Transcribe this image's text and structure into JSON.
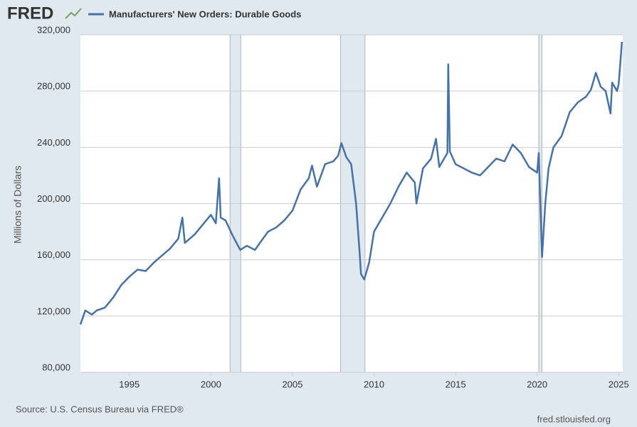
{
  "chart_data": {
    "type": "line",
    "logo": "FRED",
    "y_label": "Millions of Dollars",
    "source": "Source: U.S. Census Bureau via FRED®",
    "site": "fred.stlouisfed.org",
    "x": [
      1992.0,
      1992.3,
      1992.7,
      1993.0,
      1993.5,
      1994.0,
      1994.5,
      1995.0,
      1995.5,
      1996.0,
      1996.5,
      1997.0,
      1997.5,
      1998.0,
      1998.25,
      1998.4,
      1999.0,
      1999.5,
      2000.0,
      2000.3,
      2000.5,
      2000.6,
      2000.9,
      2001.3,
      2001.8,
      2002.2,
      2002.7,
      2003.0,
      2003.5,
      2004.0,
      2004.5,
      2005.0,
      2005.5,
      2006.0,
      2006.2,
      2006.5,
      2007.0,
      2007.5,
      2007.8,
      2008.0,
      2008.3,
      2008.6,
      2008.9,
      2009.1,
      2009.2,
      2009.4,
      2009.7,
      2010.0,
      2010.5,
      2011.0,
      2011.5,
      2012.0,
      2012.5,
      2012.6,
      2013.0,
      2013.5,
      2013.8,
      2014.0,
      2014.5,
      2014.55,
      2014.65,
      2015.0,
      2015.5,
      2016.0,
      2016.5,
      2017.0,
      2017.5,
      2018.0,
      2018.5,
      2019.0,
      2019.5,
      2020.0,
      2020.1,
      2020.3,
      2020.5,
      2020.7,
      2021.0,
      2021.5,
      2022.0,
      2022.5,
      2023.0,
      2023.3,
      2023.6,
      2023.9,
      2024.2,
      2024.5,
      2024.6,
      2024.9,
      2025.0,
      2025.2
    ],
    "series": [
      {
        "name": "Manufacturers' New Orders: Durable Goods",
        "color": "#4572a7",
        "values": [
          114000,
          124000,
          121000,
          124000,
          126000,
          133000,
          142000,
          148000,
          153000,
          152000,
          158000,
          163000,
          168000,
          175000,
          190000,
          172000,
          178000,
          185000,
          192000,
          186000,
          218000,
          190000,
          188000,
          178000,
          167000,
          170000,
          167000,
          172000,
          180000,
          183000,
          188000,
          195000,
          210000,
          218000,
          227000,
          212000,
          228000,
          230000,
          234000,
          243000,
          233000,
          228000,
          200000,
          168000,
          150000,
          146000,
          158000,
          180000,
          190000,
          200000,
          212000,
          222000,
          215000,
          200000,
          225000,
          232000,
          246000,
          226000,
          236000,
          299000,
          237000,
          228000,
          225000,
          222000,
          220000,
          226000,
          232000,
          230000,
          242000,
          236000,
          226000,
          222000,
          236000,
          162000,
          200000,
          225000,
          240000,
          248000,
          265000,
          272000,
          276000,
          281000,
          293000,
          283000,
          280000,
          264000,
          286000,
          280000,
          285000,
          315000
        ]
      }
    ],
    "recessions": [
      [
        2001.17,
        2001.83
      ],
      [
        2007.95,
        2009.45
      ],
      [
        2020.1,
        2020.3
      ]
    ],
    "recession_color": "#e1e9f0",
    "xlim": [
      1992,
      2025.25
    ],
    "xticks": [
      1995,
      2000,
      2005,
      2010,
      2015,
      2020,
      2025
    ],
    "ylim": [
      80000,
      320000
    ],
    "yticks": [
      {
        "value": 80000,
        "label": "80,000"
      },
      {
        "value": 120000,
        "label": "120,000"
      },
      {
        "value": 160000,
        "label": "160,000"
      },
      {
        "value": 200000,
        "label": "200,000"
      },
      {
        "value": 240000,
        "label": "240,000"
      },
      {
        "value": 280000,
        "label": "280,000"
      },
      {
        "value": 320000,
        "label": "320,000"
      }
    ],
    "grid": true
  }
}
